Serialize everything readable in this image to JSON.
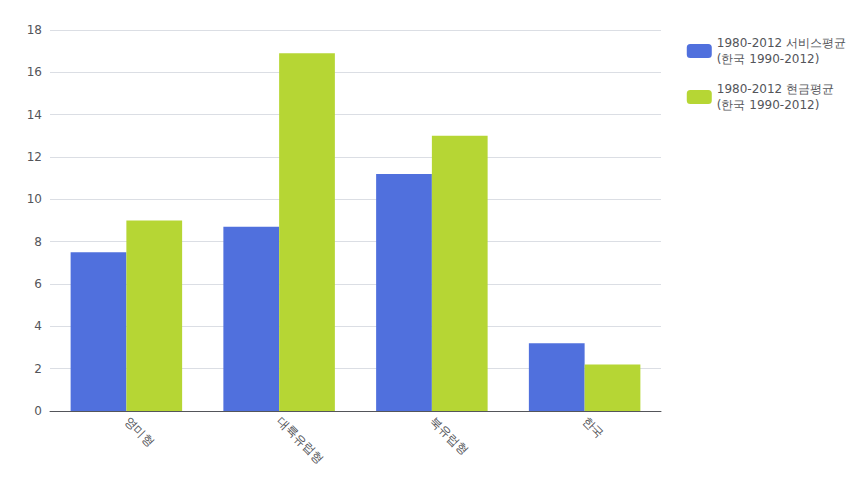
{
  "chart_data": {
    "type": "bar",
    "categories": [
      "영미형",
      "대륙유럽형",
      "북유럽형",
      "한국"
    ],
    "series": [
      {
        "name": "1980-2012 서비스평균\n(한국 1990-2012)",
        "values": [
          7.5,
          8.7,
          11.2,
          3.2
        ]
      },
      {
        "name": "1980-2012 현금평균\n(한국 1990-2012)",
        "values": [
          9.0,
          16.9,
          13.0,
          2.2
        ]
      }
    ],
    "ylim": [
      0,
      18
    ],
    "yticks": [
      0,
      2,
      4,
      6,
      8,
      10,
      12,
      14,
      16,
      18
    ],
    "grid": true,
    "legend": "right"
  }
}
